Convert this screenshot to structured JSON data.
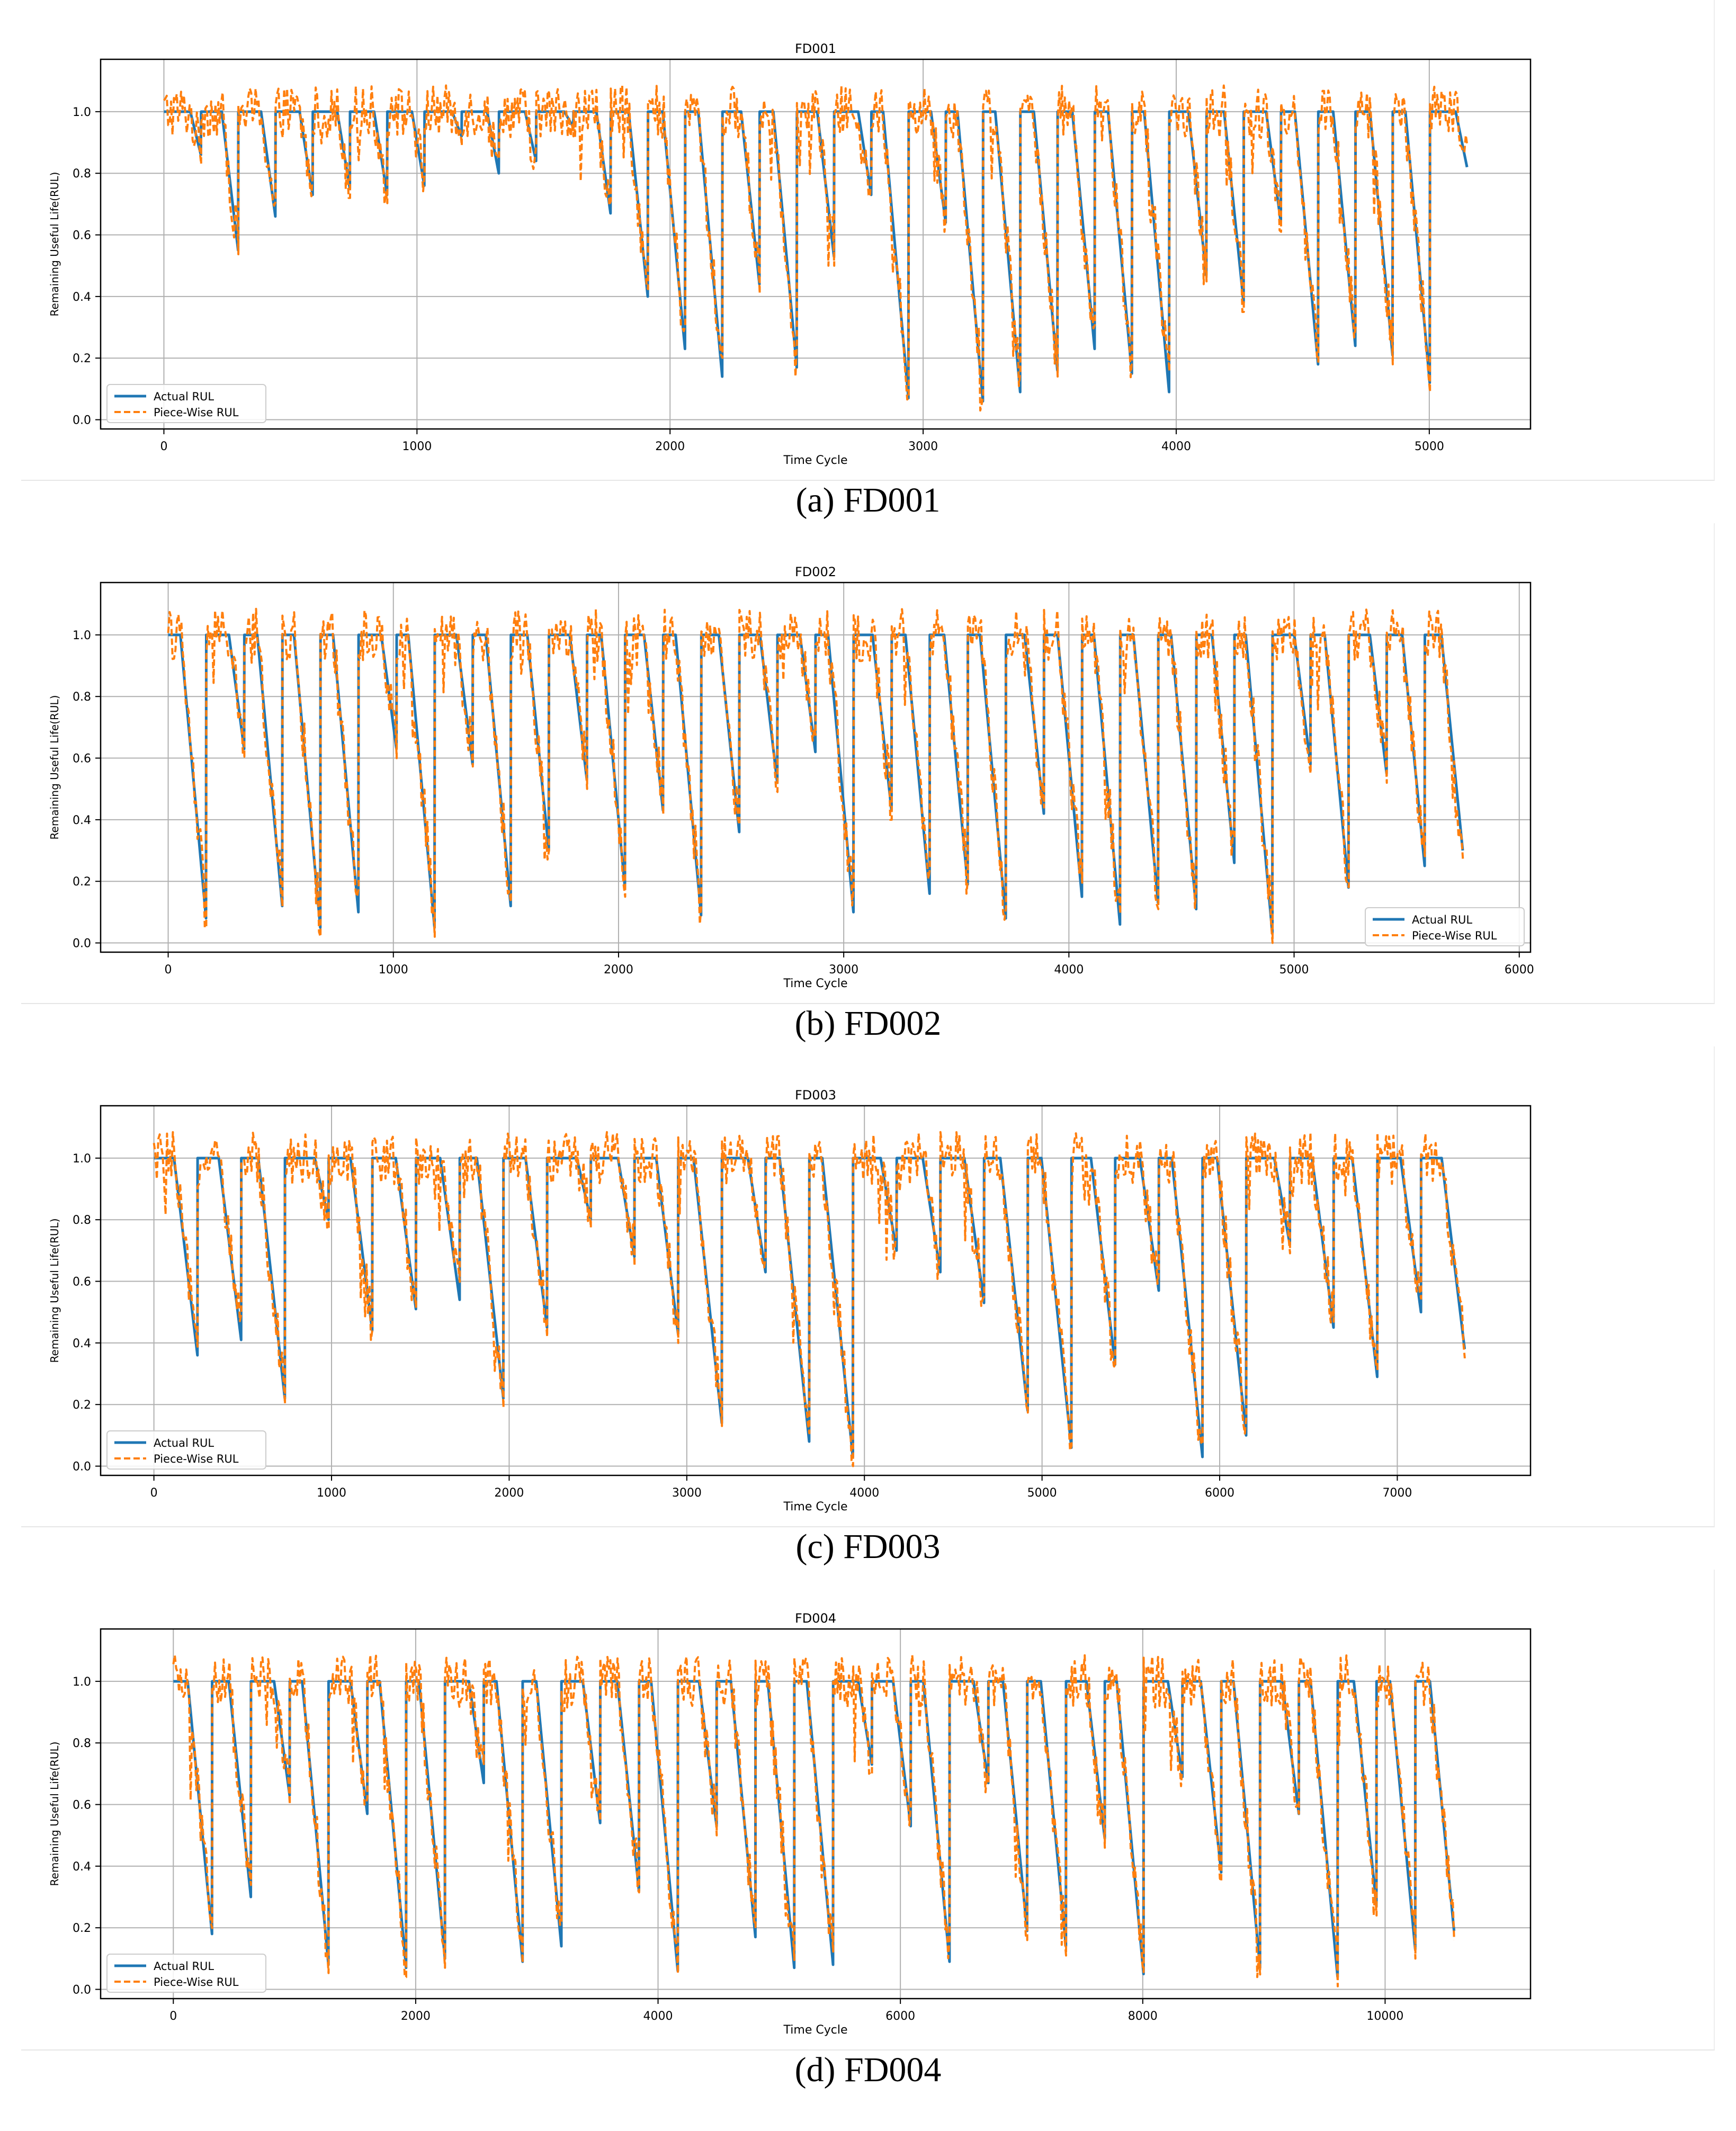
{
  "colors": {
    "actual": "#1f77b4",
    "piecewise": "#ff7f0e",
    "grid": "#b0b0b0",
    "axis": "#000000"
  },
  "chart_data": [
    {
      "type": "line",
      "title": "FD001",
      "caption": "(a) FD001",
      "xlabel": "Time Cycle",
      "ylabel": "Remaining Useful Life(RUL)",
      "xlim": [
        -250,
        5400
      ],
      "ylim": [
        -0.03,
        1.17
      ],
      "xticks": [
        0,
        1000,
        2000,
        3000,
        4000,
        5000
      ],
      "yticks": [
        "0.0",
        "0.2",
        "0.4",
        "0.6",
        "0.8",
        "1.0"
      ],
      "grid": true,
      "legend_position": "bottom-left",
      "x_end": 5150,
      "series": [
        {
          "name": "Actual RUL",
          "style": "solid"
        },
        {
          "name": "Piece-Wise RUL",
          "style": "dashed"
        }
      ],
      "engine_minima": [
        0.86,
        0.55,
        0.66,
        0.73,
        0.75,
        0.73,
        0.76,
        0.92,
        0.8,
        0.84,
        0.95,
        0.67,
        0.4,
        0.23,
        0.14,
        0.44,
        0.17,
        0.53,
        0.73,
        0.07,
        0.64,
        0.06,
        0.09,
        0.16,
        0.23,
        0.15,
        0.09,
        0.47,
        0.38,
        0.64,
        0.18,
        0.24,
        0.21,
        0.12,
        0.82
      ]
    },
    {
      "type": "line",
      "title": "FD002",
      "caption": "(b) FD002",
      "xlabel": "Time Cycle",
      "ylabel": "Remaining Useful Life(RUL)",
      "xlim": [
        -300,
        6050
      ],
      "ylim": [
        -0.03,
        1.17
      ],
      "xticks": [
        0,
        1000,
        2000,
        3000,
        4000,
        5000,
        6000
      ],
      "yticks": [
        "0.0",
        "0.2",
        "0.4",
        "0.6",
        "0.8",
        "1.0"
      ],
      "grid": true,
      "legend_position": "bottom-right",
      "x_end": 5750,
      "series": [
        {
          "name": "Actual RUL",
          "style": "solid"
        },
        {
          "name": "Piece-Wise RUL",
          "style": "dashed"
        }
      ],
      "engine_minima": [
        0.08,
        0.63,
        0.12,
        0.05,
        0.1,
        0.63,
        0.05,
        0.58,
        0.12,
        0.3,
        0.53,
        0.18,
        0.43,
        0.09,
        0.36,
        0.52,
        0.62,
        0.1,
        0.43,
        0.16,
        0.19,
        0.08,
        0.42,
        0.15,
        0.06,
        0.13,
        0.11,
        0.26,
        0.03,
        0.58,
        0.18,
        0.55,
        0.25,
        0.3
      ]
    },
    {
      "type": "line",
      "title": "FD003",
      "caption": "(c) FD003",
      "xlabel": "Time Cycle",
      "ylabel": "Remaining Useful Life(RUL)",
      "xlim": [
        -300,
        7750
      ],
      "ylim": [
        -0.03,
        1.17
      ],
      "xticks": [
        0,
        1000,
        2000,
        3000,
        4000,
        5000,
        6000,
        7000
      ],
      "yticks": [
        "0.0",
        "0.2",
        "0.4",
        "0.6",
        "0.8",
        "1.0"
      ],
      "grid": true,
      "legend_position": "bottom-left",
      "x_end": 7380,
      "series": [
        {
          "name": "Actual RUL",
          "style": "solid"
        },
        {
          "name": "Piece-Wise RUL",
          "style": "dashed"
        }
      ],
      "engine_minima": [
        0.36,
        0.41,
        0.22,
        0.8,
        0.44,
        0.51,
        0.54,
        0.22,
        0.45,
        0.8,
        0.68,
        0.43,
        0.14,
        0.63,
        0.08,
        0.03,
        0.7,
        0.63,
        0.53,
        0.18,
        0.06,
        0.33,
        0.57,
        0.03,
        0.1,
        0.72,
        0.45,
        0.29,
        0.5,
        0.38
      ]
    },
    {
      "type": "line",
      "title": "FD004",
      "caption": "(d) FD004",
      "xlabel": "Time Cycle",
      "ylabel": "Remaining Useful Life(RUL)",
      "xlim": [
        -600,
        11200
      ],
      "ylim": [
        -0.03,
        1.17
      ],
      "xticks": [
        0,
        2000,
        4000,
        6000,
        8000,
        10000
      ],
      "yticks": [
        "0.0",
        "0.2",
        "0.4",
        "0.6",
        "0.8",
        "1.0"
      ],
      "grid": true,
      "legend_position": "bottom-left",
      "x_end": 10570,
      "series": [
        {
          "name": "Actual RUL",
          "style": "solid"
        },
        {
          "name": "Piece-Wise RUL",
          "style": "dashed"
        }
      ],
      "engine_minima": [
        0.18,
        0.3,
        0.63,
        0.08,
        0.57,
        0.07,
        0.1,
        0.67,
        0.09,
        0.14,
        0.54,
        0.32,
        0.06,
        0.53,
        0.17,
        0.07,
        0.08,
        0.73,
        0.53,
        0.09,
        0.67,
        0.19,
        0.14,
        0.49,
        0.05,
        0.69,
        0.38,
        0.07,
        0.57,
        0.04,
        0.27,
        0.13,
        0.19
      ]
    }
  ]
}
